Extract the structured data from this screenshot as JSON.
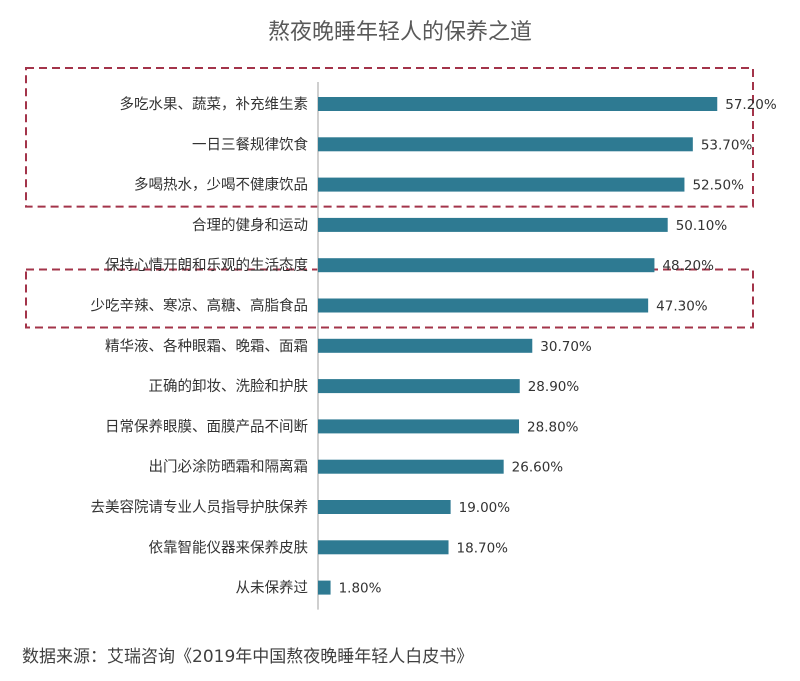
{
  "chart_data": {
    "type": "bar",
    "orientation": "horizontal",
    "title": "熬夜晚睡年轻人的保养之道",
    "xlabel": "",
    "ylabel": "",
    "xlim": [
      0,
      60
    ],
    "grid": false,
    "categories": [
      "多吃水果、蔬菜，补充维生素",
      "一日三餐规律饮食",
      "多喝热水，少喝不健康饮品",
      "合理的健身和运动",
      "保持心情开朗和乐观的生活态度",
      "少吃辛辣、寒凉、高糖、高脂食品",
      "精华液、各种眼霜、晚霜、面霜",
      "正确的卸妆、洗脸和护肤",
      "日常保养眼膜、面膜产品不间断",
      "出门必涂防晒霜和隔离霜",
      "去美容院请专业人员指导护肤保养",
      "依靠智能仪器来保养皮肤",
      "从未保养过"
    ],
    "values": [
      57.2,
      53.7,
      52.5,
      50.1,
      48.2,
      47.3,
      30.7,
      28.9,
      28.8,
      26.6,
      19.0,
      18.7,
      1.8
    ],
    "value_labels": [
      "57.20%",
      "53.70%",
      "52.50%",
      "50.10%",
      "48.20%",
      "47.30%",
      "30.70%",
      "28.90%",
      "28.80%",
      "26.60%",
      "19.00%",
      "18.70%",
      "1.80%"
    ],
    "highlighted_groups": [
      [
        0,
        1,
        2
      ],
      [
        5
      ]
    ]
  },
  "source_note": "数据来源：艾瑞咨询《2019年中国熬夜晚睡年轻人白皮书》",
  "colors": {
    "bar": "#2e7a92",
    "axis": "#bfbfbf",
    "highlight_box": "#a3344a"
  }
}
